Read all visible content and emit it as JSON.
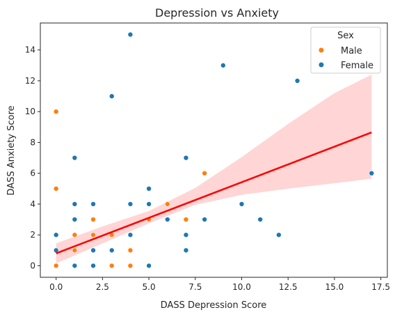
{
  "chart_data": {
    "type": "scatter",
    "title": "Depression vs Anxiety",
    "xlabel": "DASS Depression Score",
    "ylabel": "DASS Anxiety Score",
    "xlim": [
      -0.85,
      17.85
    ],
    "ylim": [
      -0.75,
      15.75
    ],
    "xticks": [
      0,
      2.5,
      5,
      7.5,
      10,
      12.5,
      15,
      17.5
    ],
    "xtick_labels": [
      "0.0",
      "2.5",
      "5.0",
      "7.5",
      "10.0",
      "12.5",
      "15.0",
      "17.5"
    ],
    "yticks": [
      0,
      2,
      4,
      6,
      8,
      10,
      12,
      14
    ],
    "ytick_labels": [
      "0",
      "2",
      "4",
      "6",
      "8",
      "10",
      "12",
      "14"
    ],
    "grid": false,
    "legend": {
      "title": "Sex",
      "placement": "top-right",
      "entries": [
        {
          "label": "Male",
          "color": "#ff7f0e"
        },
        {
          "label": "Female",
          "color": "#1f77b4"
        }
      ]
    },
    "series": [
      {
        "name": "Male",
        "color": "#ff7f0e",
        "points": [
          [
            0,
            10
          ],
          [
            0,
            5
          ],
          [
            0,
            0
          ],
          [
            1,
            2
          ],
          [
            1,
            1
          ],
          [
            2,
            3
          ],
          [
            2,
            2
          ],
          [
            3,
            0
          ],
          [
            3,
            2
          ],
          [
            4,
            1
          ],
          [
            4,
            0
          ],
          [
            5,
            3
          ],
          [
            6,
            4
          ],
          [
            7,
            3
          ],
          [
            8,
            6
          ]
        ]
      },
      {
        "name": "Female",
        "color": "#1f77b4",
        "points": [
          [
            0,
            2
          ],
          [
            0,
            1
          ],
          [
            1,
            7
          ],
          [
            1,
            4
          ],
          [
            1,
            3
          ],
          [
            1,
            1
          ],
          [
            1,
            0
          ],
          [
            2,
            4
          ],
          [
            2,
            3
          ],
          [
            2,
            2
          ],
          [
            2,
            1
          ],
          [
            2,
            0
          ],
          [
            3,
            11
          ],
          [
            3,
            2
          ],
          [
            3,
            1
          ],
          [
            3,
            0
          ],
          [
            4,
            15
          ],
          [
            4,
            4
          ],
          [
            4,
            2
          ],
          [
            4,
            1
          ],
          [
            5,
            5
          ],
          [
            5,
            4
          ],
          [
            5,
            0
          ],
          [
            6,
            3
          ],
          [
            7,
            7
          ],
          [
            7,
            2
          ],
          [
            7,
            1
          ],
          [
            8,
            3
          ],
          [
            9,
            13
          ],
          [
            10,
            4
          ],
          [
            11,
            3
          ],
          [
            12,
            2
          ],
          [
            13,
            12
          ],
          [
            17,
            6
          ]
        ]
      }
    ],
    "regression": {
      "color": "#ff0000",
      "band_color": "#ffb3b3",
      "line": [
        [
          0,
          0.8
        ],
        [
          17,
          8.65
        ]
      ],
      "ci_upper": [
        [
          0,
          1.45
        ],
        [
          2.5,
          2.55
        ],
        [
          5,
          3.55
        ],
        [
          7.5,
          5.05
        ],
        [
          10,
          7.05
        ],
        [
          12.5,
          9.2
        ],
        [
          15,
          11.2
        ],
        [
          17,
          12.4
        ]
      ],
      "ci_lower": [
        [
          0,
          0.15
        ],
        [
          2.5,
          1.45
        ],
        [
          5,
          2.75
        ],
        [
          7.5,
          3.95
        ],
        [
          10,
          4.6
        ],
        [
          12.5,
          5.0
        ],
        [
          15,
          5.35
        ],
        [
          17,
          5.65
        ]
      ]
    }
  }
}
